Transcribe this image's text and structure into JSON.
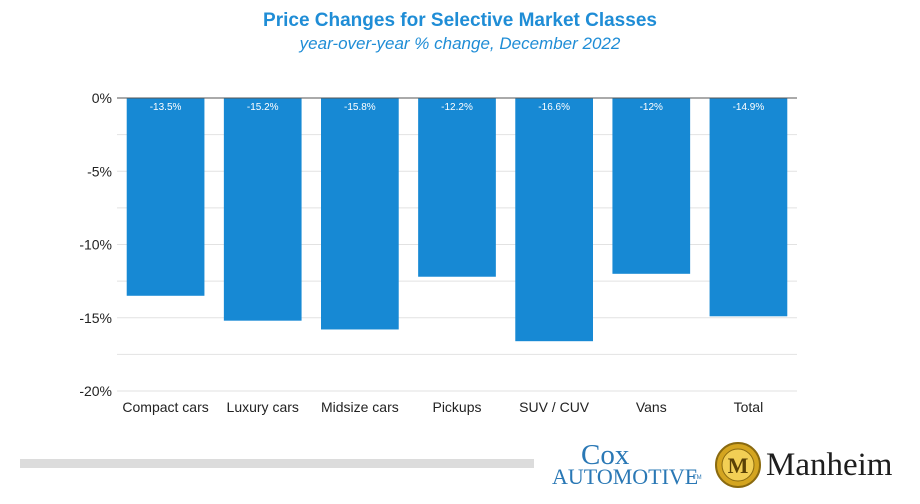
{
  "chart_data": {
    "type": "bar",
    "title": "Price Changes for Selective Market Classes",
    "subtitle": "year-over-year % change, December 2022",
    "categories": [
      "Compact cars",
      "Luxury cars",
      "Midsize cars",
      "Pickups",
      "SUV / CUV",
      "Vans",
      "Total"
    ],
    "values": [
      -13.5,
      -15.2,
      -15.8,
      -12.2,
      -16.6,
      -12.0,
      -14.9
    ],
    "value_labels": [
      "-13.5%",
      "-15.2%",
      "-15.8%",
      "-12.2%",
      "-16.6%",
      "-12%",
      "-14.9%"
    ],
    "ylim": [
      -20,
      0
    ],
    "yticks": [
      0,
      -5,
      -10,
      -15,
      -20
    ],
    "ytick_labels": [
      "0%",
      "-5%",
      "-10%",
      "-15%",
      "-20%"
    ],
    "grid": true,
    "xlabel": "",
    "ylabel": "",
    "bar_color": "#1789d4"
  },
  "footer": {
    "cox_name": "Cox",
    "cox_sub": "AUTOMOTIVE",
    "cox_tm": "TM",
    "manheim_name": "Manheim",
    "manheim_emblem_letter": "M"
  },
  "colors": {
    "title": "#1f8dd6",
    "cox": "#2a78b5",
    "manheim_gold": "#d4a520"
  }
}
